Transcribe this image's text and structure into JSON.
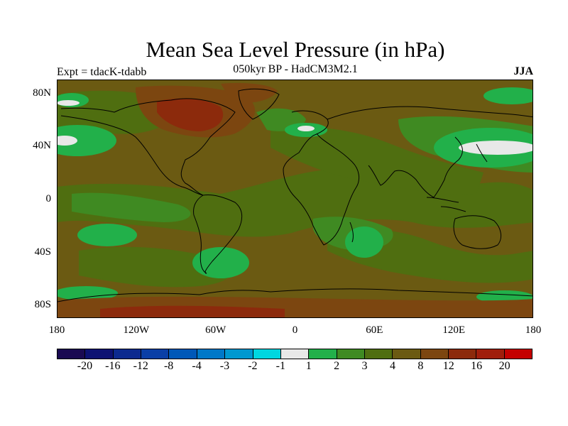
{
  "title": "Mean Sea Level Pressure (in hPa)",
  "subtitle": "050kyr BP - HadCM3M2.1",
  "experiment": "Expt = tdacK-tdabb",
  "season": "JJA",
  "y_axis": {
    "labels": [
      {
        "text": "80N",
        "lat": 80
      },
      {
        "text": "40N",
        "lat": 40
      },
      {
        "text": "0",
        "lat": 0
      },
      {
        "text": "40S",
        "lat": -40
      },
      {
        "text": "80S",
        "lat": -80
      }
    ]
  },
  "x_axis": {
    "labels": [
      {
        "text": "180",
        "lon": -180
      },
      {
        "text": "120W",
        "lon": -120
      },
      {
        "text": "60W",
        "lon": -60
      },
      {
        "text": "0",
        "lon": 0
      },
      {
        "text": "60E",
        "lon": 60
      },
      {
        "text": "120E",
        "lon": 120
      },
      {
        "text": "180",
        "lon": 180
      }
    ]
  },
  "colorbar": {
    "colors": [
      "#1a0a52",
      "#0d1273",
      "#0c2a8f",
      "#0a3fa6",
      "#0058b8",
      "#0078c8",
      "#0098d0",
      "#00d6e0",
      "#e8e8e8",
      "#22b04a",
      "#3f8a22",
      "#4f6e10",
      "#6b5a12",
      "#7c4610",
      "#8c2a0c",
      "#a01e0c",
      "#c40000"
    ],
    "labels": [
      "-20",
      "-16",
      "-12",
      "-8",
      "-4",
      "-3",
      "-2",
      "-1",
      "1",
      "2",
      "3",
      "4",
      "8",
      "12",
      "16",
      "20"
    ]
  },
  "map_colors": {
    "level_4_8": "#6b5a12",
    "level_3_4": "#4f6e10",
    "level_2_3": "#3f8a22",
    "level_1_2": "#22b04a",
    "level_m1_1": "#e8e8e8",
    "level_8_12": "#7c4610",
    "level_12_16": "#8c2a0c",
    "coastline": "#000000"
  }
}
